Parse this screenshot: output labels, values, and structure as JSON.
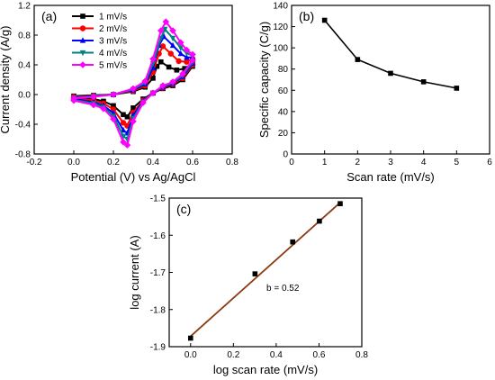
{
  "chart_data": [
    {
      "panel": "(a)",
      "type": "line",
      "xlabel": "Potential (V) vs Ag/AgCl",
      "ylabel": "Current density (A/g)",
      "xlim": [
        -0.2,
        0.8
      ],
      "ylim": [
        -0.8,
        1.2
      ],
      "xticks": [
        "-0.2",
        "0.0",
        "0.2",
        "0.4",
        "0.6",
        "0.8"
      ],
      "yticks": [
        "-0.8",
        "-0.4",
        "0.0",
        "0.4",
        "0.8",
        "1.2"
      ],
      "legend_position": "top-left",
      "series": [
        {
          "name": "1 mV/s",
          "color": "#000000",
          "marker": "square",
          "forward": [
            [
              0.0,
              -0.02
            ],
            [
              0.1,
              -0.01
            ],
            [
              0.2,
              0.0
            ],
            [
              0.3,
              0.04
            ],
            [
              0.36,
              0.1
            ],
            [
              0.4,
              0.22
            ],
            [
              0.42,
              0.38
            ],
            [
              0.44,
              0.44
            ],
            [
              0.48,
              0.37
            ],
            [
              0.52,
              0.33
            ],
            [
              0.56,
              0.35
            ],
            [
              0.6,
              0.42
            ]
          ],
          "reverse": [
            [
              0.6,
              0.38
            ],
            [
              0.55,
              0.2
            ],
            [
              0.5,
              0.12
            ],
            [
              0.45,
              0.08
            ],
            [
              0.4,
              0.02
            ],
            [
              0.35,
              -0.06
            ],
            [
              0.3,
              -0.18
            ],
            [
              0.27,
              -0.3
            ],
            [
              0.25,
              -0.27
            ],
            [
              0.2,
              -0.15
            ],
            [
              0.15,
              -0.09
            ],
            [
              0.1,
              -0.06
            ],
            [
              0.0,
              -0.04
            ]
          ]
        },
        {
          "name": "2 mV/s",
          "color": "#ff0000",
          "marker": "circle",
          "forward": [
            [
              0.0,
              -0.03
            ],
            [
              0.1,
              -0.015
            ],
            [
              0.2,
              0.0
            ],
            [
              0.3,
              0.05
            ],
            [
              0.36,
              0.12
            ],
            [
              0.4,
              0.3
            ],
            [
              0.43,
              0.55
            ],
            [
              0.45,
              0.65
            ],
            [
              0.49,
              0.55
            ],
            [
              0.53,
              0.45
            ],
            [
              0.57,
              0.44
            ],
            [
              0.6,
              0.48
            ]
          ],
          "reverse": [
            [
              0.6,
              0.4
            ],
            [
              0.55,
              0.22
            ],
            [
              0.5,
              0.14
            ],
            [
              0.45,
              0.09
            ],
            [
              0.4,
              0.02
            ],
            [
              0.35,
              -0.08
            ],
            [
              0.3,
              -0.24
            ],
            [
              0.27,
              -0.42
            ],
            [
              0.25,
              -0.38
            ],
            [
              0.2,
              -0.2
            ],
            [
              0.15,
              -0.12
            ],
            [
              0.1,
              -0.08
            ],
            [
              0.0,
              -0.05
            ]
          ]
        },
        {
          "name": "3 mV/s",
          "color": "#0000ff",
          "marker": "triangle-up",
          "forward": [
            [
              0.0,
              -0.04
            ],
            [
              0.1,
              -0.02
            ],
            [
              0.2,
              0.0
            ],
            [
              0.3,
              0.06
            ],
            [
              0.36,
              0.14
            ],
            [
              0.4,
              0.36
            ],
            [
              0.43,
              0.66
            ],
            [
              0.455,
              0.78
            ],
            [
              0.5,
              0.66
            ],
            [
              0.54,
              0.55
            ],
            [
              0.57,
              0.5
            ],
            [
              0.6,
              0.5
            ]
          ],
          "reverse": [
            [
              0.6,
              0.42
            ],
            [
              0.55,
              0.24
            ],
            [
              0.5,
              0.15
            ],
            [
              0.45,
              0.1
            ],
            [
              0.4,
              0.02
            ],
            [
              0.35,
              -0.09
            ],
            [
              0.3,
              -0.28
            ],
            [
              0.27,
              -0.52
            ],
            [
              0.25,
              -0.48
            ],
            [
              0.2,
              -0.25
            ],
            [
              0.15,
              -0.15
            ],
            [
              0.1,
              -0.1
            ],
            [
              0.0,
              -0.06
            ]
          ]
        },
        {
          "name": "4 mV/s",
          "color": "#008080",
          "marker": "triangle-down",
          "forward": [
            [
              0.0,
              -0.045
            ],
            [
              0.1,
              -0.025
            ],
            [
              0.2,
              0.0
            ],
            [
              0.3,
              0.07
            ],
            [
              0.36,
              0.16
            ],
            [
              0.4,
              0.42
            ],
            [
              0.44,
              0.76
            ],
            [
              0.46,
              0.88
            ],
            [
              0.5,
              0.76
            ],
            [
              0.54,
              0.63
            ],
            [
              0.57,
              0.56
            ],
            [
              0.6,
              0.52
            ]
          ],
          "reverse": [
            [
              0.6,
              0.44
            ],
            [
              0.55,
              0.26
            ],
            [
              0.5,
              0.16
            ],
            [
              0.45,
              0.11
            ],
            [
              0.4,
              0.02
            ],
            [
              0.35,
              -0.1
            ],
            [
              0.3,
              -0.32
            ],
            [
              0.27,
              -0.6
            ],
            [
              0.25,
              -0.56
            ],
            [
              0.2,
              -0.29
            ],
            [
              0.15,
              -0.17
            ],
            [
              0.1,
              -0.12
            ],
            [
              0.0,
              -0.07
            ]
          ]
        },
        {
          "name": "5 mV/s",
          "color": "#ff00ff",
          "marker": "diamond",
          "forward": [
            [
              0.0,
              -0.05
            ],
            [
              0.1,
              -0.03
            ],
            [
              0.2,
              0.0
            ],
            [
              0.3,
              0.08
            ],
            [
              0.36,
              0.18
            ],
            [
              0.4,
              0.48
            ],
            [
              0.44,
              0.86
            ],
            [
              0.465,
              0.98
            ],
            [
              0.5,
              0.86
            ],
            [
              0.54,
              0.7
            ],
            [
              0.57,
              0.6
            ],
            [
              0.6,
              0.54
            ]
          ],
          "reverse": [
            [
              0.6,
              0.46
            ],
            [
              0.55,
              0.28
            ],
            [
              0.5,
              0.17
            ],
            [
              0.45,
              0.12
            ],
            [
              0.4,
              0.02
            ],
            [
              0.35,
              -0.11
            ],
            [
              0.3,
              -0.36
            ],
            [
              0.27,
              -0.68
            ],
            [
              0.25,
              -0.64
            ],
            [
              0.2,
              -0.33
            ],
            [
              0.15,
              -0.19
            ],
            [
              0.1,
              -0.14
            ],
            [
              0.0,
              -0.08
            ]
          ]
        }
      ]
    },
    {
      "panel": "(b)",
      "type": "line",
      "xlabel": "Scan rate (mV/s)",
      "ylabel": "Specific capacity (C/g)",
      "xlim": [
        0,
        6
      ],
      "ylim": [
        0,
        140
      ],
      "xticks": [
        "0",
        "1",
        "2",
        "3",
        "4",
        "5",
        "6"
      ],
      "yticks": [
        "0",
        "20",
        "40",
        "60",
        "80",
        "100",
        "120",
        "140"
      ],
      "series": [
        {
          "x": [
            1,
            2,
            3,
            4,
            5
          ],
          "y": [
            126,
            89,
            76,
            68,
            62
          ],
          "color": "#000000",
          "marker": "square"
        }
      ]
    },
    {
      "panel": "(c)",
      "type": "scatter",
      "xlabel": "log scan rate (mV/s)",
      "ylabel": "log current (A)",
      "xlim": [
        -0.1,
        0.8
      ],
      "ylim": [
        -1.9,
        -1.5
      ],
      "xticks": [
        "0.0",
        "0.2",
        "0.4",
        "0.6",
        "0.8"
      ],
      "yticks": [
        "-1.9",
        "-1.8",
        "-1.7",
        "-1.6",
        "-1.5"
      ],
      "annotation": "b = 0.52",
      "points": {
        "x": [
          0.0,
          0.301,
          0.477,
          0.602,
          0.699
        ],
        "y": [
          -1.877,
          -1.704,
          -1.618,
          -1.562,
          -1.515
        ]
      },
      "fit": {
        "x": [
          0.0,
          0.699
        ],
        "y": [
          -1.872,
          -1.512
        ],
        "color": "#8b3a10"
      }
    }
  ]
}
